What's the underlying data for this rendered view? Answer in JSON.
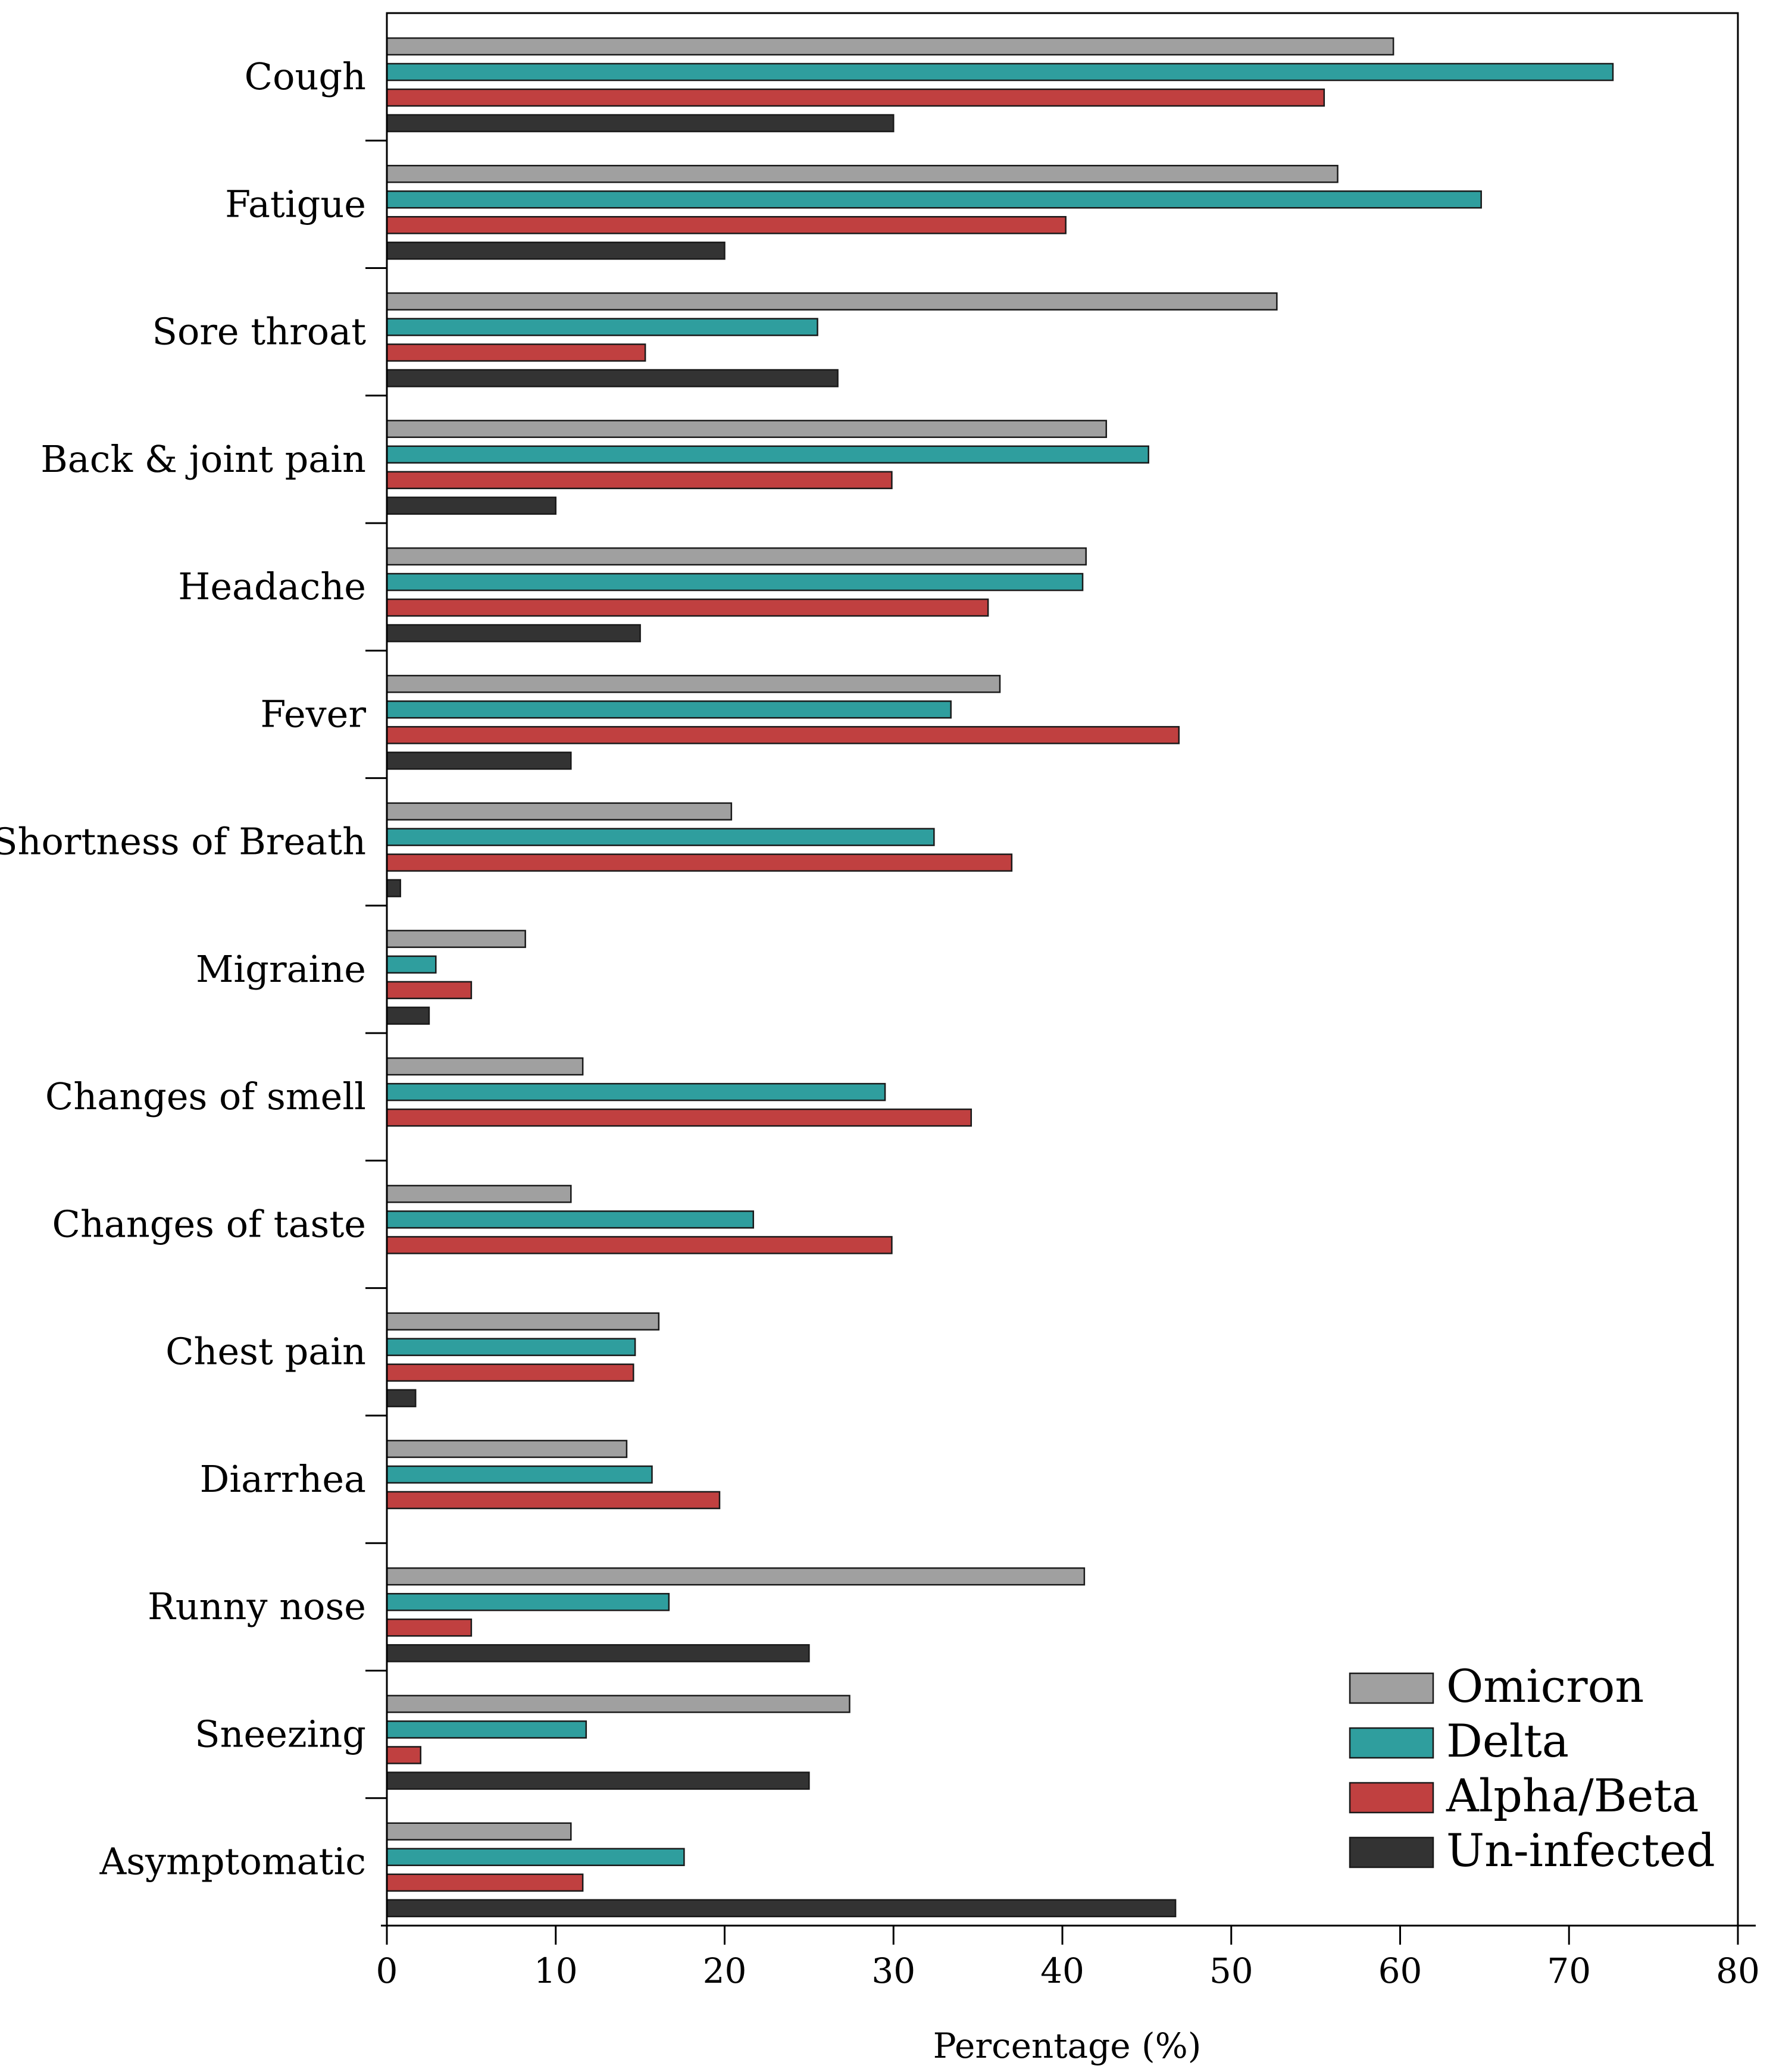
{
  "chart_data": {
    "type": "bar",
    "orientation": "horizontal",
    "title": "",
    "xlabel": "Percentage (%)",
    "ylabel": "",
    "xlim": [
      0,
      80
    ],
    "xticks": [
      0,
      10,
      20,
      30,
      40,
      50,
      60,
      70,
      80
    ],
    "categories": [
      "Cough",
      "Fatigue",
      "Sore throat",
      "Back & joint pain",
      "Headache",
      "Fever",
      "Shortness of Breath",
      "Migraine",
      "Changes of smell",
      "Changes of taste",
      "Chest pain",
      "Diarrhea",
      "Runny nose",
      "Sneezing",
      "Asymptomatic"
    ],
    "series": [
      {
        "name": "Omicron",
        "color": "#a0a0a0",
        "values": [
          59.6,
          56.3,
          52.7,
          42.6,
          41.4,
          36.3,
          20.4,
          8.2,
          11.6,
          10.9,
          16.1,
          14.2,
          41.3,
          27.4,
          10.9
        ]
      },
      {
        "name": "Delta",
        "color": "#2f9e9e",
        "values": [
          72.6,
          64.8,
          25.5,
          45.1,
          41.2,
          33.4,
          32.4,
          2.9,
          29.5,
          21.7,
          14.7,
          15.7,
          16.7,
          11.8,
          17.6
        ]
      },
      {
        "name": "Alpha/Beta",
        "color": "#c04040",
        "values": [
          55.5,
          40.2,
          15.3,
          29.9,
          35.6,
          46.9,
          37.0,
          5.0,
          34.6,
          29.9,
          14.6,
          19.7,
          5.0,
          2.0,
          11.6
        ]
      },
      {
        "name": "Un-infected",
        "color": "#333333",
        "values": [
          30.0,
          20.0,
          26.7,
          10.0,
          15.0,
          10.9,
          0.8,
          2.5,
          0,
          0,
          1.7,
          0,
          25.0,
          25.0,
          46.7
        ]
      }
    ],
    "legend_position": "bottom-right"
  }
}
